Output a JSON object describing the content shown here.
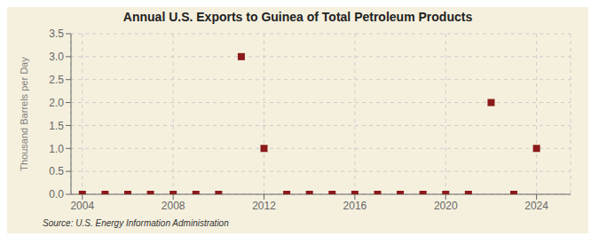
{
  "chart_data": {
    "type": "scatter",
    "title": "Annual U.S. Exports to Guinea of Total Petroleum Products",
    "y_label": "Thousand Barrels per Day",
    "annotations": [
      "Source: U.S. Energy Information Administration"
    ],
    "x": [
      2004,
      2005,
      2006,
      2007,
      2008,
      2009,
      2010,
      2011,
      2012,
      2013,
      2014,
      2015,
      2016,
      2017,
      2018,
      2019,
      2020,
      2021,
      2022,
      2023,
      2024
    ],
    "values": [
      0,
      0,
      0,
      0,
      0,
      0,
      0,
      3.0,
      1.0,
      0,
      0,
      0,
      0,
      0,
      0,
      0,
      0,
      0,
      2.0,
      0,
      1.0
    ],
    "color": "#8b1a1a",
    "marker": "square",
    "xlim": [
      2003.5,
      2025.5
    ],
    "xticks": [
      2004,
      2008,
      2012,
      2016,
      2020,
      2024
    ],
    "ylim": [
      0,
      3.5
    ],
    "yticks": [
      {
        "value": 0,
        "label": "0.0"
      },
      0.5,
      {
        "value": 1,
        "label": "1.0"
      },
      1.5,
      {
        "value": 2,
        "label": "2.0"
      },
      2.5,
      {
        "value": 3,
        "label": "3.0"
      },
      3.5
    ],
    "grid": true
  }
}
